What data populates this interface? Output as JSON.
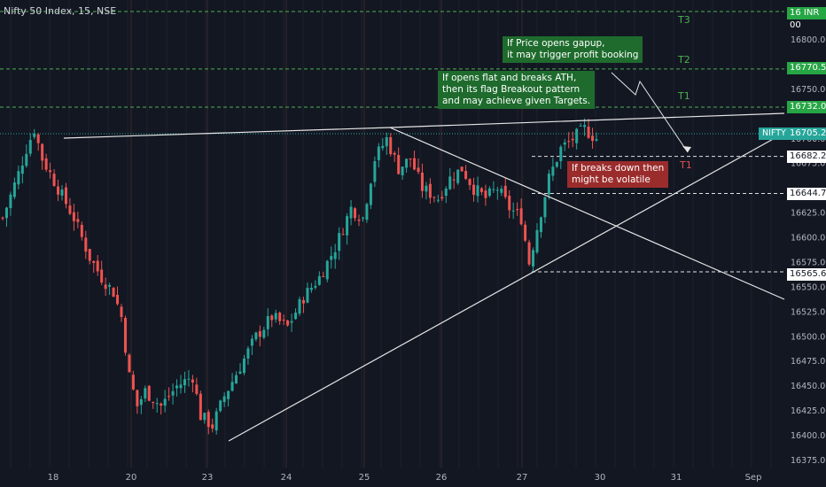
{
  "header": {
    "title": "Nifty 50 Index, 15, NSE"
  },
  "annotations": {
    "gapup": "If Price opens gapup,\nit may trigger profit booking",
    "flat": "If opens flat and breaks ATH,\nthen its flag Breakout pattern\nand may achieve given Targets.",
    "breakdown": "If breaks down then\nmight be volatile"
  },
  "targets": {
    "t3": "T3",
    "t2": "T2",
    "t1_up": "T1",
    "t1_down": "T1"
  },
  "price_badges": {
    "top": "16 INR 00",
    "l16770": "16770.55",
    "l16732": "16732.00",
    "l16705": "16705.20",
    "l16682": "16682.25",
    "l16644": "16644.75",
    "l16565": "16565.60"
  },
  "symbol_label": "NIFTY",
  "colors": {
    "up": "#26a69a",
    "down": "#ef5350",
    "bg": "#131722",
    "green_note": "#1e6b2d",
    "red_note": "#9b2c2c"
  },
  "chart_data": {
    "type": "candlestick",
    "ylim": [
      16370,
      16840
    ],
    "x_ticks": [
      "18",
      "20",
      "23",
      "24",
      "25",
      "26",
      "27",
      "30",
      "31",
      "Sep"
    ],
    "y_ticks": [
      "16800.00",
      "16750.00",
      "16700.00",
      "16675.00",
      "16625.00",
      "16600.00",
      "16575.00",
      "16550.00",
      "16525.00",
      "16500.00",
      "16475.00",
      "16450.00",
      "16425.00",
      "16400.00",
      "16375.00"
    ],
    "horizontal_levels": [
      16770.55,
      16732.0,
      16705.2,
      16682.25,
      16644.75,
      16565.6
    ],
    "close_anchors": [
      [
        0,
        16620
      ],
      [
        4,
        16665
      ],
      [
        6,
        16690
      ],
      [
        8,
        16710
      ],
      [
        10,
        16680
      ],
      [
        14,
        16650
      ],
      [
        18,
        16620
      ],
      [
        22,
        16580
      ],
      [
        25,
        16560
      ],
      [
        28,
        16545
      ],
      [
        30,
        16520
      ],
      [
        32,
        16460
      ],
      [
        34,
        16430
      ],
      [
        36,
        16445
      ],
      [
        40,
        16430
      ],
      [
        44,
        16450
      ],
      [
        48,
        16460
      ],
      [
        50,
        16420
      ],
      [
        53,
        16410
      ],
      [
        56,
        16440
      ],
      [
        60,
        16470
      ],
      [
        64,
        16500
      ],
      [
        68,
        16520
      ],
      [
        72,
        16510
      ],
      [
        76,
        16540
      ],
      [
        80,
        16560
      ],
      [
        84,
        16590
      ],
      [
        88,
        16630
      ],
      [
        91,
        16620
      ],
      [
        94,
        16680
      ],
      [
        97,
        16700
      ],
      [
        100,
        16670
      ],
      [
        103,
        16680
      ],
      [
        106,
        16650
      ],
      [
        110,
        16640
      ],
      [
        113,
        16660
      ],
      [
        116,
        16670
      ],
      [
        119,
        16650
      ],
      [
        122,
        16640
      ],
      [
        125,
        16650
      ],
      [
        128,
        16630
      ],
      [
        131,
        16620
      ],
      [
        133,
        16575
      ],
      [
        135,
        16610
      ],
      [
        138,
        16660
      ],
      [
        141,
        16690
      ],
      [
        144,
        16700
      ],
      [
        147,
        16710
      ],
      [
        150,
        16700
      ]
    ]
  }
}
